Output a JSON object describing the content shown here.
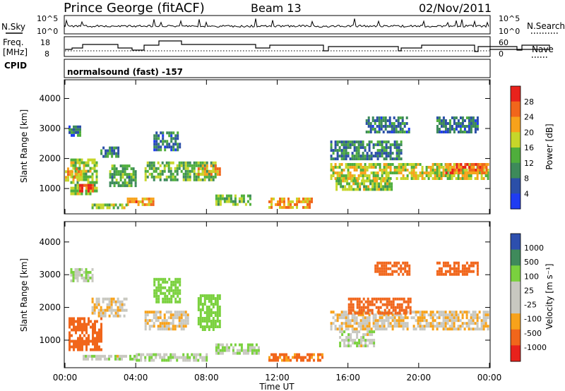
{
  "header": {
    "station": "Prince George (fitACF)",
    "beam": "Beam 13",
    "date": "02/Nov/2011"
  },
  "top_panels": {
    "nsky_label": "N.Sky",
    "nsky_ticks": [
      "10^5",
      "10^0"
    ],
    "nsearch_label": "N.Search",
    "freq_label": "Freq.",
    "freq_unit": "[MHz]",
    "freq_ticks": [
      "18",
      "8"
    ],
    "nave_ticks": [
      "60",
      "0"
    ],
    "nave_label": "Nave",
    "cpid_label": "CPID",
    "cpid_text": "normalsound (fast) -157"
  },
  "colors": {
    "power": [
      "#1f3cf2",
      "#2b4fa8",
      "#3d8a5a",
      "#4fae3c",
      "#c6d62a",
      "#f7a21b",
      "#f1661b",
      "#e8221c"
    ],
    "velocity": [
      "#e8221c",
      "#f1661b",
      "#f7a21b",
      "#c8c8c0",
      "#c8c8c0",
      "#7ad13e",
      "#3f8a5b",
      "#2d4fae"
    ],
    "trace": "#000000"
  },
  "chart_data": [
    {
      "type": "heatmap",
      "panel": "power",
      "ylabel": "Slant Range [km]",
      "ylim": [
        180,
        4600
      ],
      "yticks": [
        "4000",
        "3000",
        "2000",
        "1000"
      ],
      "xlim": [
        0,
        24
      ],
      "colorbar": {
        "label": "Power [dB]",
        "ticks": [
          "28",
          "24",
          "20",
          "16",
          "12",
          "8",
          "4"
        ],
        "range": [
          0,
          32
        ]
      },
      "regions": [
        {
          "t0": 0.3,
          "t1": 1.8,
          "r0": 800,
          "r1": 2000,
          "value": 16
        },
        {
          "t0": 0.8,
          "t1": 1.6,
          "r0": 900,
          "r1": 1150,
          "value": 28
        },
        {
          "t0": 0.0,
          "t1": 0.9,
          "r0": 1300,
          "r1": 1700,
          "value": 22
        },
        {
          "t0": 0.2,
          "t1": 0.8,
          "r0": 2750,
          "r1": 3100,
          "value": 8
        },
        {
          "t0": 2.0,
          "t1": 3.0,
          "r0": 2100,
          "r1": 2400,
          "value": 10
        },
        {
          "t0": 2.5,
          "t1": 4.0,
          "r0": 1100,
          "r1": 1800,
          "value": 12
        },
        {
          "t0": 4.5,
          "t1": 8.5,
          "r0": 1300,
          "r1": 1900,
          "value": 14
        },
        {
          "t0": 5.0,
          "t1": 6.5,
          "r0": 2300,
          "r1": 2900,
          "value": 8
        },
        {
          "t0": 7.5,
          "t1": 8.8,
          "r0": 1500,
          "r1": 1800,
          "value": 22
        },
        {
          "t0": 3.5,
          "t1": 5.0,
          "r0": 450,
          "r1": 700,
          "value": 24
        },
        {
          "t0": 1.5,
          "t1": 3.5,
          "r0": 400,
          "r1": 500,
          "value": 16
        },
        {
          "t0": 8.5,
          "t1": 10.5,
          "r0": 450,
          "r1": 800,
          "value": 14
        },
        {
          "t0": 11.5,
          "t1": 14.0,
          "r0": 400,
          "r1": 700,
          "value": 22
        },
        {
          "t0": 15.0,
          "t1": 23.9,
          "r0": 1350,
          "r1": 1850,
          "value": 18
        },
        {
          "t0": 15.3,
          "t1": 18.5,
          "r0": 1000,
          "r1": 1300,
          "value": 16
        },
        {
          "t0": 21.5,
          "t1": 23.8,
          "r0": 1550,
          "r1": 1850,
          "value": 25
        },
        {
          "t0": 15.0,
          "t1": 19.0,
          "r0": 2000,
          "r1": 2600,
          "value": 10
        },
        {
          "t0": 17.0,
          "t1": 19.5,
          "r0": 2900,
          "r1": 3400,
          "value": 8
        },
        {
          "t0": 21.0,
          "t1": 23.3,
          "r0": 2900,
          "r1": 3400,
          "value": 8
        }
      ]
    },
    {
      "type": "heatmap",
      "panel": "velocity",
      "ylabel": "Slant Range [km]",
      "ylim": [
        180,
        4600
      ],
      "yticks": [
        "4000",
        "3000",
        "2000",
        "1000"
      ],
      "xlim": [
        0,
        24
      ],
      "xlabel": "Time UT",
      "xticks": [
        "00:00",
        "04:00",
        "08:00",
        "12:00",
        "16:00",
        "20:00",
        "00:00"
      ],
      "colorbar": {
        "label": "Velocity [m s⁻¹]",
        "ticks": [
          "1000",
          "500",
          "100",
          "25",
          "-25",
          "-100",
          "-500",
          "-1000"
        ]
      },
      "regions": [
        {
          "t0": 0.2,
          "t1": 2.0,
          "r0": 700,
          "r1": 1700,
          "value": -300
        },
        {
          "t0": 0.3,
          "t1": 1.5,
          "r0": 2800,
          "r1": 3200,
          "value": 80
        },
        {
          "t0": 1.5,
          "t1": 3.5,
          "r0": 1700,
          "r1": 2300,
          "value": 0
        },
        {
          "t0": 4.5,
          "t1": 7.0,
          "r0": 1300,
          "r1": 1900,
          "value": 0
        },
        {
          "t0": 5.0,
          "t1": 6.5,
          "r0": 2200,
          "r1": 2900,
          "value": 250
        },
        {
          "t0": 7.5,
          "t1": 8.8,
          "r0": 1300,
          "r1": 2400,
          "value": 350
        },
        {
          "t0": 1.0,
          "t1": 4.0,
          "r0": 400,
          "r1": 550,
          "value": 60
        },
        {
          "t0": 4.0,
          "t1": 8.0,
          "r0": 400,
          "r1": 600,
          "value": 80
        },
        {
          "t0": 8.5,
          "t1": 11.0,
          "r0": 600,
          "r1": 900,
          "value": 120
        },
        {
          "t0": 11.5,
          "t1": 14.5,
          "r0": 350,
          "r1": 600,
          "value": -150
        },
        {
          "t0": 15.0,
          "t1": 23.9,
          "r0": 1350,
          "r1": 1900,
          "value": 0
        },
        {
          "t0": 16.0,
          "t1": 19.5,
          "r0": 1800,
          "r1": 2300,
          "value": -300
        },
        {
          "t0": 15.5,
          "t1": 17.5,
          "r0": 800,
          "r1": 1300,
          "value": 60
        },
        {
          "t0": 17.5,
          "t1": 19.5,
          "r0": 3000,
          "r1": 3400,
          "value": -250
        },
        {
          "t0": 21.0,
          "t1": 23.3,
          "r0": 3000,
          "r1": 3400,
          "value": -200
        }
      ]
    }
  ]
}
